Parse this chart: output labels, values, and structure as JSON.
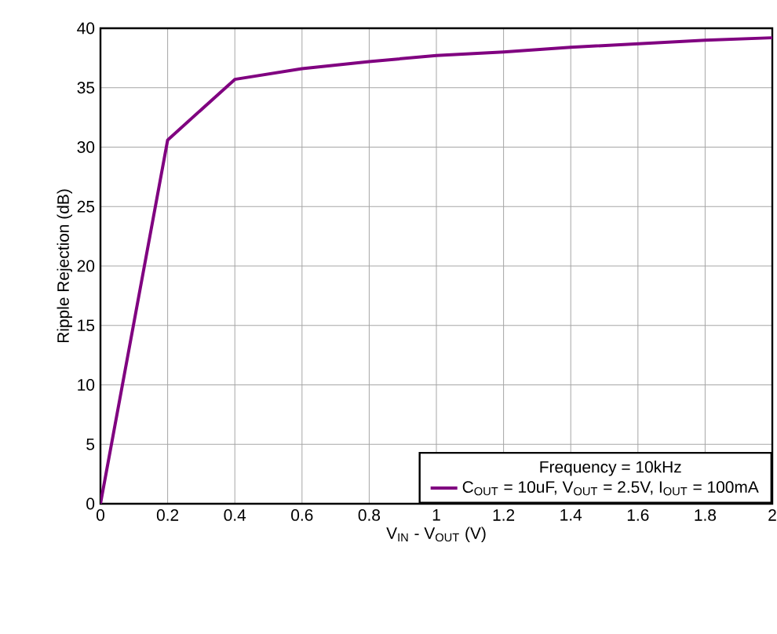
{
  "chart_data": {
    "type": "line",
    "xlabel": "V$_{IN}$ - V$_{OUT}$ (V)",
    "ylabel": "Ripple Rejection (dB)",
    "legend_title": "Frequency = 10kHz",
    "xlim": [
      0,
      2
    ],
    "ylim": [
      0,
      40
    ],
    "xticks": [
      0,
      0.2,
      0.4,
      0.6,
      0.8,
      1,
      1.2,
      1.4,
      1.6,
      1.8,
      2
    ],
    "yticks": [
      0,
      5,
      10,
      15,
      20,
      25,
      30,
      35,
      40
    ],
    "x": [
      0,
      0.2,
      0.4,
      0.6,
      0.8,
      1,
      1.2,
      1.4,
      1.6,
      1.8,
      2
    ],
    "series": [
      {
        "name": "C$_{OUT}$ = 10uF, V$_{OUT}$ = 2.5V, I$_{OUT}$ = 100mA",
        "color": "#800080",
        "values": [
          0,
          30.6,
          35.7,
          36.6,
          37.2,
          37.7,
          38.0,
          38.4,
          38.7,
          39.0,
          39.2
        ]
      }
    ],
    "grid": true,
    "legend": "bottom right",
    "marker": "none",
    "line_style": "solid"
  }
}
